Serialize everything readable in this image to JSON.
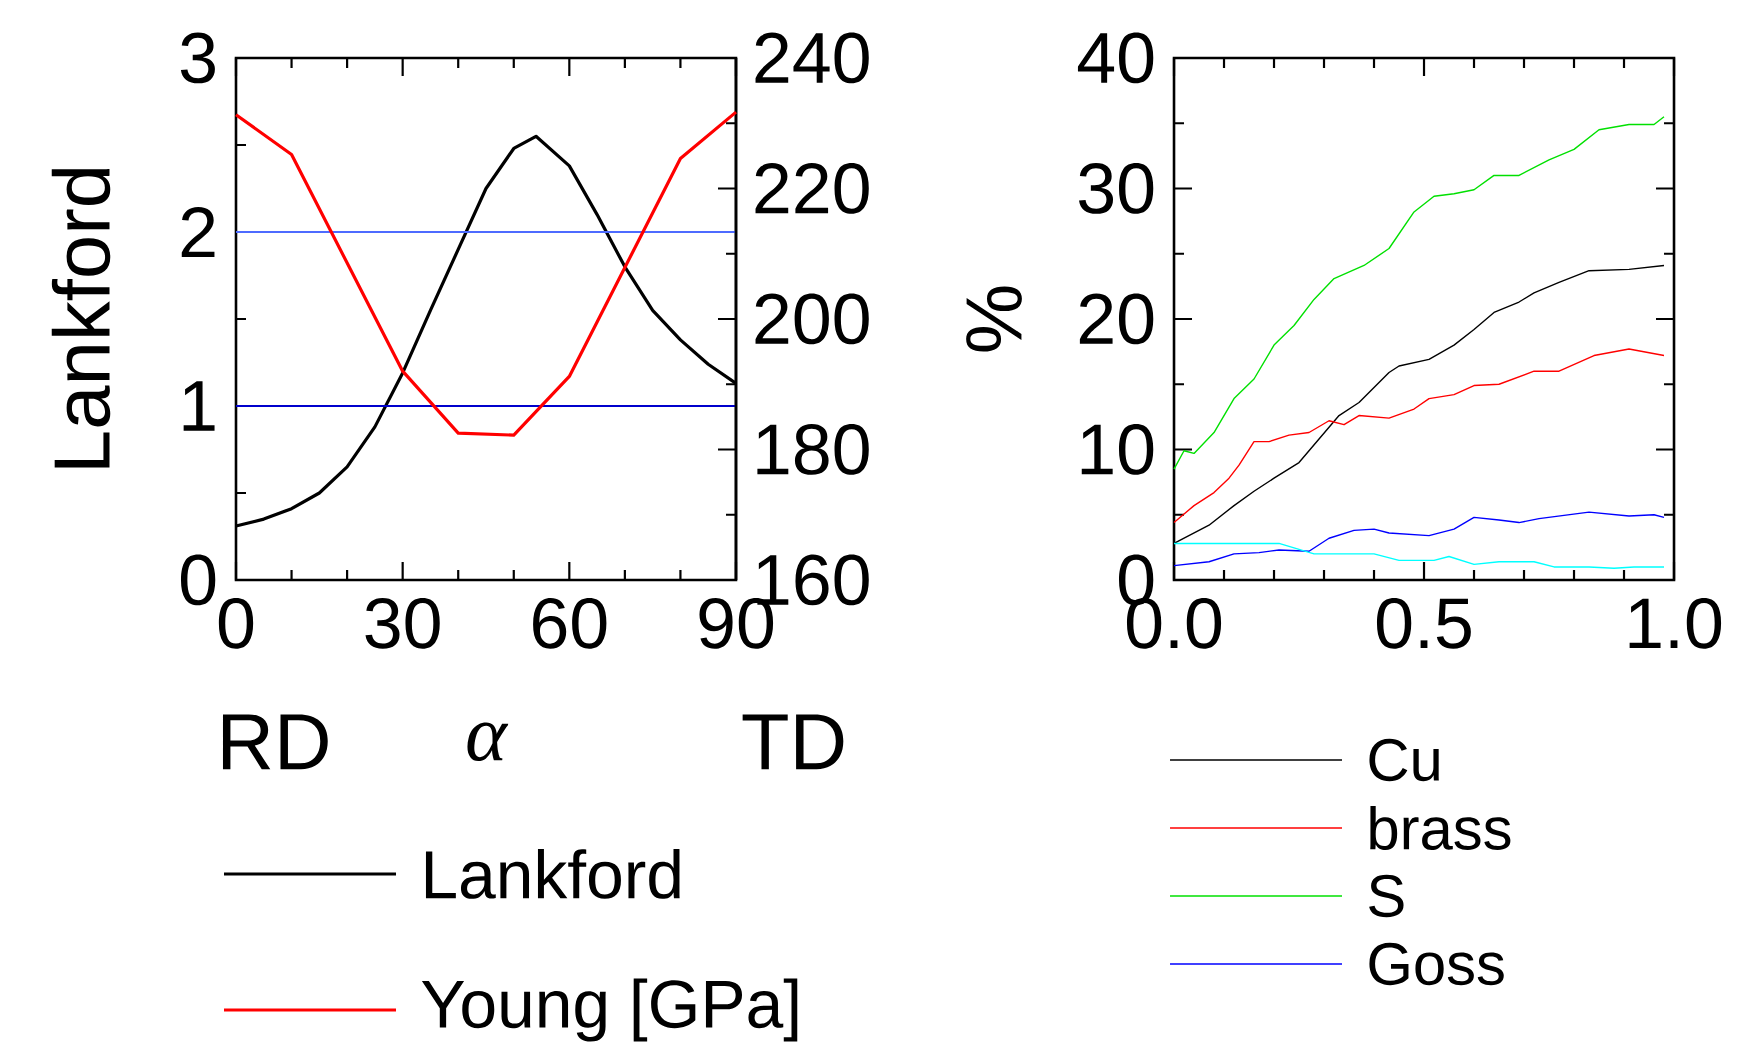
{
  "chart_data": [
    {
      "type": "line",
      "xlabel": "α",
      "ylabel": "Lankford",
      "xlim": [
        0,
        90
      ],
      "xticks": [
        0,
        30,
        60,
        90
      ],
      "ylim": [
        0,
        3
      ],
      "yticks": [
        0,
        1,
        2,
        3
      ],
      "y2lim": [
        160,
        240
      ],
      "y2ticks": [
        160,
        180,
        200,
        220,
        240
      ],
      "legend": "bottom",
      "annotations": [
        "RD",
        "TD"
      ],
      "ref_lines": [
        {
          "axis": "y",
          "value": 2,
          "color": "#4d6bff"
        },
        {
          "axis": "y",
          "value": 1,
          "color": "#0000cc"
        }
      ],
      "series": [
        {
          "name": "Lankford",
          "color": "#000000",
          "x": [
            0,
            5,
            10,
            15,
            20,
            25,
            30,
            35,
            40,
            45,
            50,
            54,
            60,
            65,
            70,
            75,
            80,
            85,
            90
          ],
          "values": [
            0.31,
            0.35,
            0.41,
            0.5,
            0.65,
            0.88,
            1.19,
            1.55,
            1.9,
            2.25,
            2.48,
            2.55,
            2.38,
            2.1,
            1.8,
            1.55,
            1.38,
            1.24,
            1.13
          ]
        },
        {
          "name": "Young [GPa]",
          "color": "#ff0000",
          "axis": "y2",
          "x": [
            0,
            10,
            30,
            40,
            50,
            60,
            80,
            90
          ],
          "values": [
            231.3,
            225.2,
            192,
            182.5,
            182.2,
            191.2,
            224.6,
            231.7
          ]
        }
      ]
    },
    {
      "type": "line",
      "ylabel": "%",
      "xlim": [
        0,
        1
      ],
      "xticks": [
        {
          "value": 0,
          "label": "0.0"
        },
        {
          "value": 0.5,
          "label": "0.5"
        },
        {
          "value": 1,
          "label": "1.0"
        }
      ],
      "ylim": [
        0,
        40
      ],
      "yticks": [
        0,
        10,
        20,
        30,
        40
      ],
      "legend": "bottom",
      "series": [
        {
          "name": "Cu",
          "color": "#000000",
          "x": [
            0,
            0.03,
            0.07,
            0.12,
            0.16,
            0.2,
            0.25,
            0.29,
            0.33,
            0.37,
            0.43,
            0.45,
            0.51,
            0.56,
            0.6,
            0.64,
            0.69,
            0.72,
            0.77,
            0.83,
            0.91,
            0.98
          ],
          "values": [
            2.8,
            3.4,
            4.2,
            5.7,
            6.8,
            7.8,
            9.0,
            10.8,
            12.6,
            13.6,
            15.9,
            16.4,
            16.9,
            18.0,
            19.2,
            20.5,
            21.3,
            22.0,
            22.8,
            23.7,
            23.8,
            24.1
          ]
        },
        {
          "name": "brass",
          "color": "#ff0000",
          "x": [
            0,
            0.04,
            0.08,
            0.11,
            0.13,
            0.16,
            0.19,
            0.23,
            0.27,
            0.31,
            0.34,
            0.37,
            0.43,
            0.48,
            0.51,
            0.56,
            0.6,
            0.65,
            0.72,
            0.77,
            0.84,
            0.91,
            0.98
          ],
          "values": [
            4.4,
            5.7,
            6.7,
            7.8,
            8.8,
            10.6,
            10.6,
            11.1,
            11.3,
            12.2,
            11.9,
            12.6,
            12.4,
            13.1,
            13.9,
            14.2,
            14.9,
            15.0,
            16.0,
            16.0,
            17.2,
            17.7,
            17.2
          ]
        },
        {
          "name": "S",
          "color": "#00e000",
          "x": [
            0,
            0.02,
            0.04,
            0.08,
            0.12,
            0.16,
            0.2,
            0.24,
            0.28,
            0.32,
            0.38,
            0.43,
            0.48,
            0.52,
            0.56,
            0.6,
            0.64,
            0.69,
            0.75,
            0.8,
            0.85,
            0.91,
            0.96,
            0.98
          ],
          "values": [
            8.5,
            9.9,
            9.7,
            11.3,
            13.9,
            15.4,
            18.0,
            19.5,
            21.5,
            23.1,
            24.1,
            25.4,
            28.2,
            29.4,
            29.6,
            29.9,
            31.0,
            31.0,
            32.2,
            33.0,
            34.5,
            34.9,
            34.9,
            35.5
          ]
        },
        {
          "name": "Goss",
          "color": "#0000ff",
          "x": [
            0,
            0.07,
            0.12,
            0.17,
            0.21,
            0.27,
            0.31,
            0.36,
            0.4,
            0.43,
            0.51,
            0.56,
            0.6,
            0.65,
            0.69,
            0.73,
            0.83,
            0.91,
            0.96,
            0.98
          ],
          "values": [
            1.1,
            1.4,
            2.0,
            2.1,
            2.3,
            2.2,
            3.2,
            3.8,
            3.9,
            3.6,
            3.4,
            3.9,
            4.8,
            4.6,
            4.4,
            4.7,
            5.2,
            4.9,
            5.0,
            4.8
          ]
        },
        {
          "color": "#00ffff",
          "x": [
            0,
            0.21,
            0.28,
            0.4,
            0.45,
            0.52,
            0.55,
            0.6,
            0.65,
            0.72,
            0.76,
            0.83,
            0.88,
            0.92,
            0.98
          ],
          "values": [
            2.8,
            2.8,
            2.0,
            2.0,
            1.5,
            1.5,
            1.8,
            1.2,
            1.4,
            1.4,
            1.0,
            1.0,
            0.9,
            1.0,
            1.0
          ]
        }
      ]
    }
  ]
}
